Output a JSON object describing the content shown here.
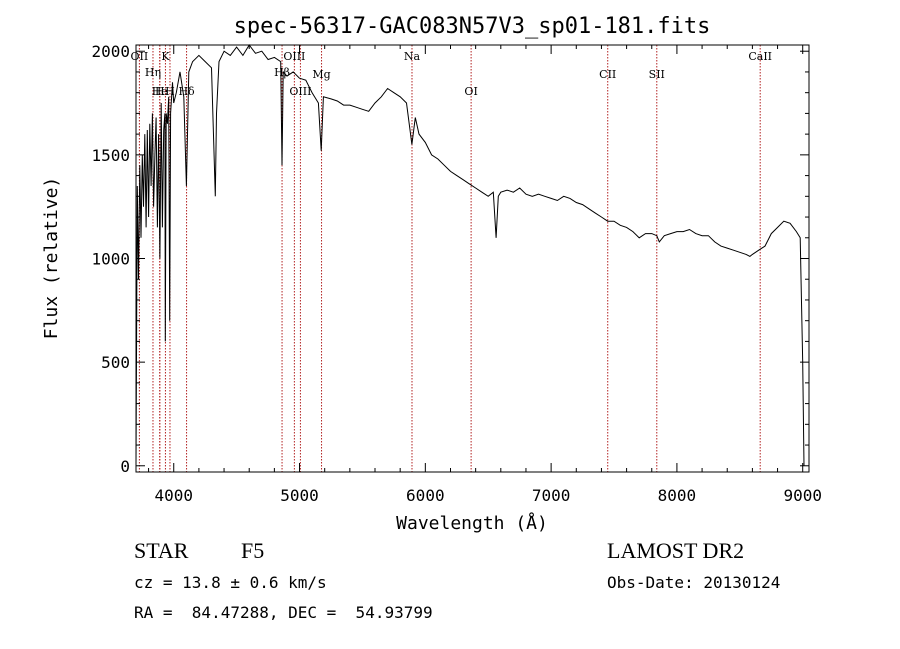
{
  "chart_data": {
    "type": "line",
    "title": "spec-56317-GAC083N57V3_sp01-181.fits",
    "xlabel": "Wavelength (Å)",
    "ylabel": "Flux (relative)",
    "xlim": [
      3700,
      9050
    ],
    "ylim": [
      -30,
      2030
    ],
    "xticks": [
      4000,
      5000,
      6000,
      7000,
      8000,
      9000
    ],
    "yticks": [
      0,
      500,
      1000,
      1500,
      2000
    ],
    "grid": false,
    "line_color": "#000000",
    "marker_color": "#b22222",
    "series": [
      {
        "x": [
          3700,
          3710,
          3720,
          3730,
          3740,
          3750,
          3760,
          3770,
          3780,
          3790,
          3800,
          3810,
          3820,
          3830,
          3840,
          3850,
          3860,
          3870,
          3880,
          3890,
          3900,
          3910,
          3920,
          3930,
          3933,
          3940,
          3950,
          3960,
          3968,
          3975,
          3990,
          4000,
          4020,
          4050,
          4080,
          4101,
          4120,
          4150,
          4200,
          4250,
          4300,
          4330,
          4340,
          4360,
          4400,
          4450,
          4500,
          4550,
          4600,
          4650,
          4700,
          4750,
          4800,
          4850,
          4861,
          4870,
          4900,
          4950,
          5000,
          5050,
          5100,
          5150,
          5172,
          5190,
          5250,
          5300,
          5350,
          5400,
          5450,
          5500,
          5550,
          5600,
          5650,
          5700,
          5750,
          5800,
          5850,
          5893,
          5920,
          5950,
          6000,
          6050,
          6100,
          6150,
          6200,
          6250,
          6300,
          6350,
          6400,
          6450,
          6500,
          6540,
          6563,
          6580,
          6600,
          6650,
          6700,
          6750,
          6800,
          6850,
          6900,
          6950,
          7000,
          7050,
          7100,
          7150,
          7200,
          7250,
          7300,
          7350,
          7400,
          7450,
          7500,
          7550,
          7600,
          7650,
          7700,
          7750,
          7800,
          7840,
          7860,
          7900,
          7950,
          8000,
          8050,
          8100,
          8150,
          8200,
          8250,
          8300,
          8350,
          8400,
          8450,
          8500,
          8550,
          8580,
          8600,
          8650,
          8700,
          8750,
          8800,
          8850,
          8900,
          8950,
          8980,
          9000,
          9010
        ],
        "values": [
          0,
          1350,
          900,
          1450,
          1100,
          1500,
          1250,
          1600,
          1150,
          1620,
          1200,
          1650,
          1350,
          1700,
          1250,
          1500,
          1680,
          1150,
          1600,
          1000,
          1750,
          1150,
          1620,
          1700,
          600,
          1700,
          1650,
          1780,
          700,
          1700,
          1850,
          1750,
          1800,
          1900,
          1780,
          1350,
          1900,
          1950,
          1980,
          1950,
          1920,
          1300,
          1700,
          1950,
          2000,
          1980,
          2020,
          1980,
          2030,
          1990,
          2000,
          1960,
          1970,
          1950,
          1450,
          1900,
          1880,
          1900,
          1870,
          1860,
          1800,
          1750,
          1520,
          1780,
          1770,
          1760,
          1740,
          1740,
          1730,
          1720,
          1710,
          1750,
          1780,
          1820,
          1800,
          1780,
          1750,
          1550,
          1680,
          1600,
          1560,
          1500,
          1480,
          1450,
          1420,
          1400,
          1380,
          1360,
          1340,
          1320,
          1300,
          1320,
          1100,
          1300,
          1320,
          1330,
          1320,
          1340,
          1310,
          1300,
          1310,
          1300,
          1290,
          1280,
          1300,
          1290,
          1270,
          1260,
          1240,
          1220,
          1200,
          1180,
          1180,
          1160,
          1150,
          1130,
          1100,
          1120,
          1120,
          1110,
          1080,
          1110,
          1120,
          1130,
          1130,
          1140,
          1120,
          1110,
          1110,
          1080,
          1060,
          1050,
          1040,
          1030,
          1020,
          1010,
          1020,
          1040,
          1060,
          1120,
          1150,
          1180,
          1170,
          1130,
          1100,
          500,
          0
        ]
      }
    ],
    "line_markers": [
      {
        "label": "OII",
        "x": 3727
      },
      {
        "label": "Hη",
        "x": 3835
      },
      {
        "label": "H",
        "x": 3889
      },
      {
        "label": "K",
        "x": 3934
      },
      {
        "label": "He",
        "x": 3889
      },
      {
        "label": "H",
        "x": 3970
      },
      {
        "label": "Hδ",
        "x": 4102
      },
      {
        "label": "Hβ",
        "x": 4861
      },
      {
        "label": "OIII",
        "x": 4959
      },
      {
        "label": "OIII",
        "x": 5007
      },
      {
        "label": "Mg",
        "x": 5175
      },
      {
        "label": "Na",
        "x": 5894
      },
      {
        "label": "OI",
        "x": 6364
      },
      {
        "label": "CII",
        "x": 7450
      },
      {
        "label": "SII",
        "x": 7840
      },
      {
        "label": "CaII",
        "x": 8662
      }
    ]
  },
  "info": {
    "object_class": "STAR",
    "subclass": "F5",
    "survey": "LAMOST DR2",
    "cz_line": "cz = 13.8 ± 0.6 km/s",
    "obs_date_line": "Obs-Date: 20130124",
    "radec_line": "RA =  84.47288, DEC =  54.93799"
  }
}
